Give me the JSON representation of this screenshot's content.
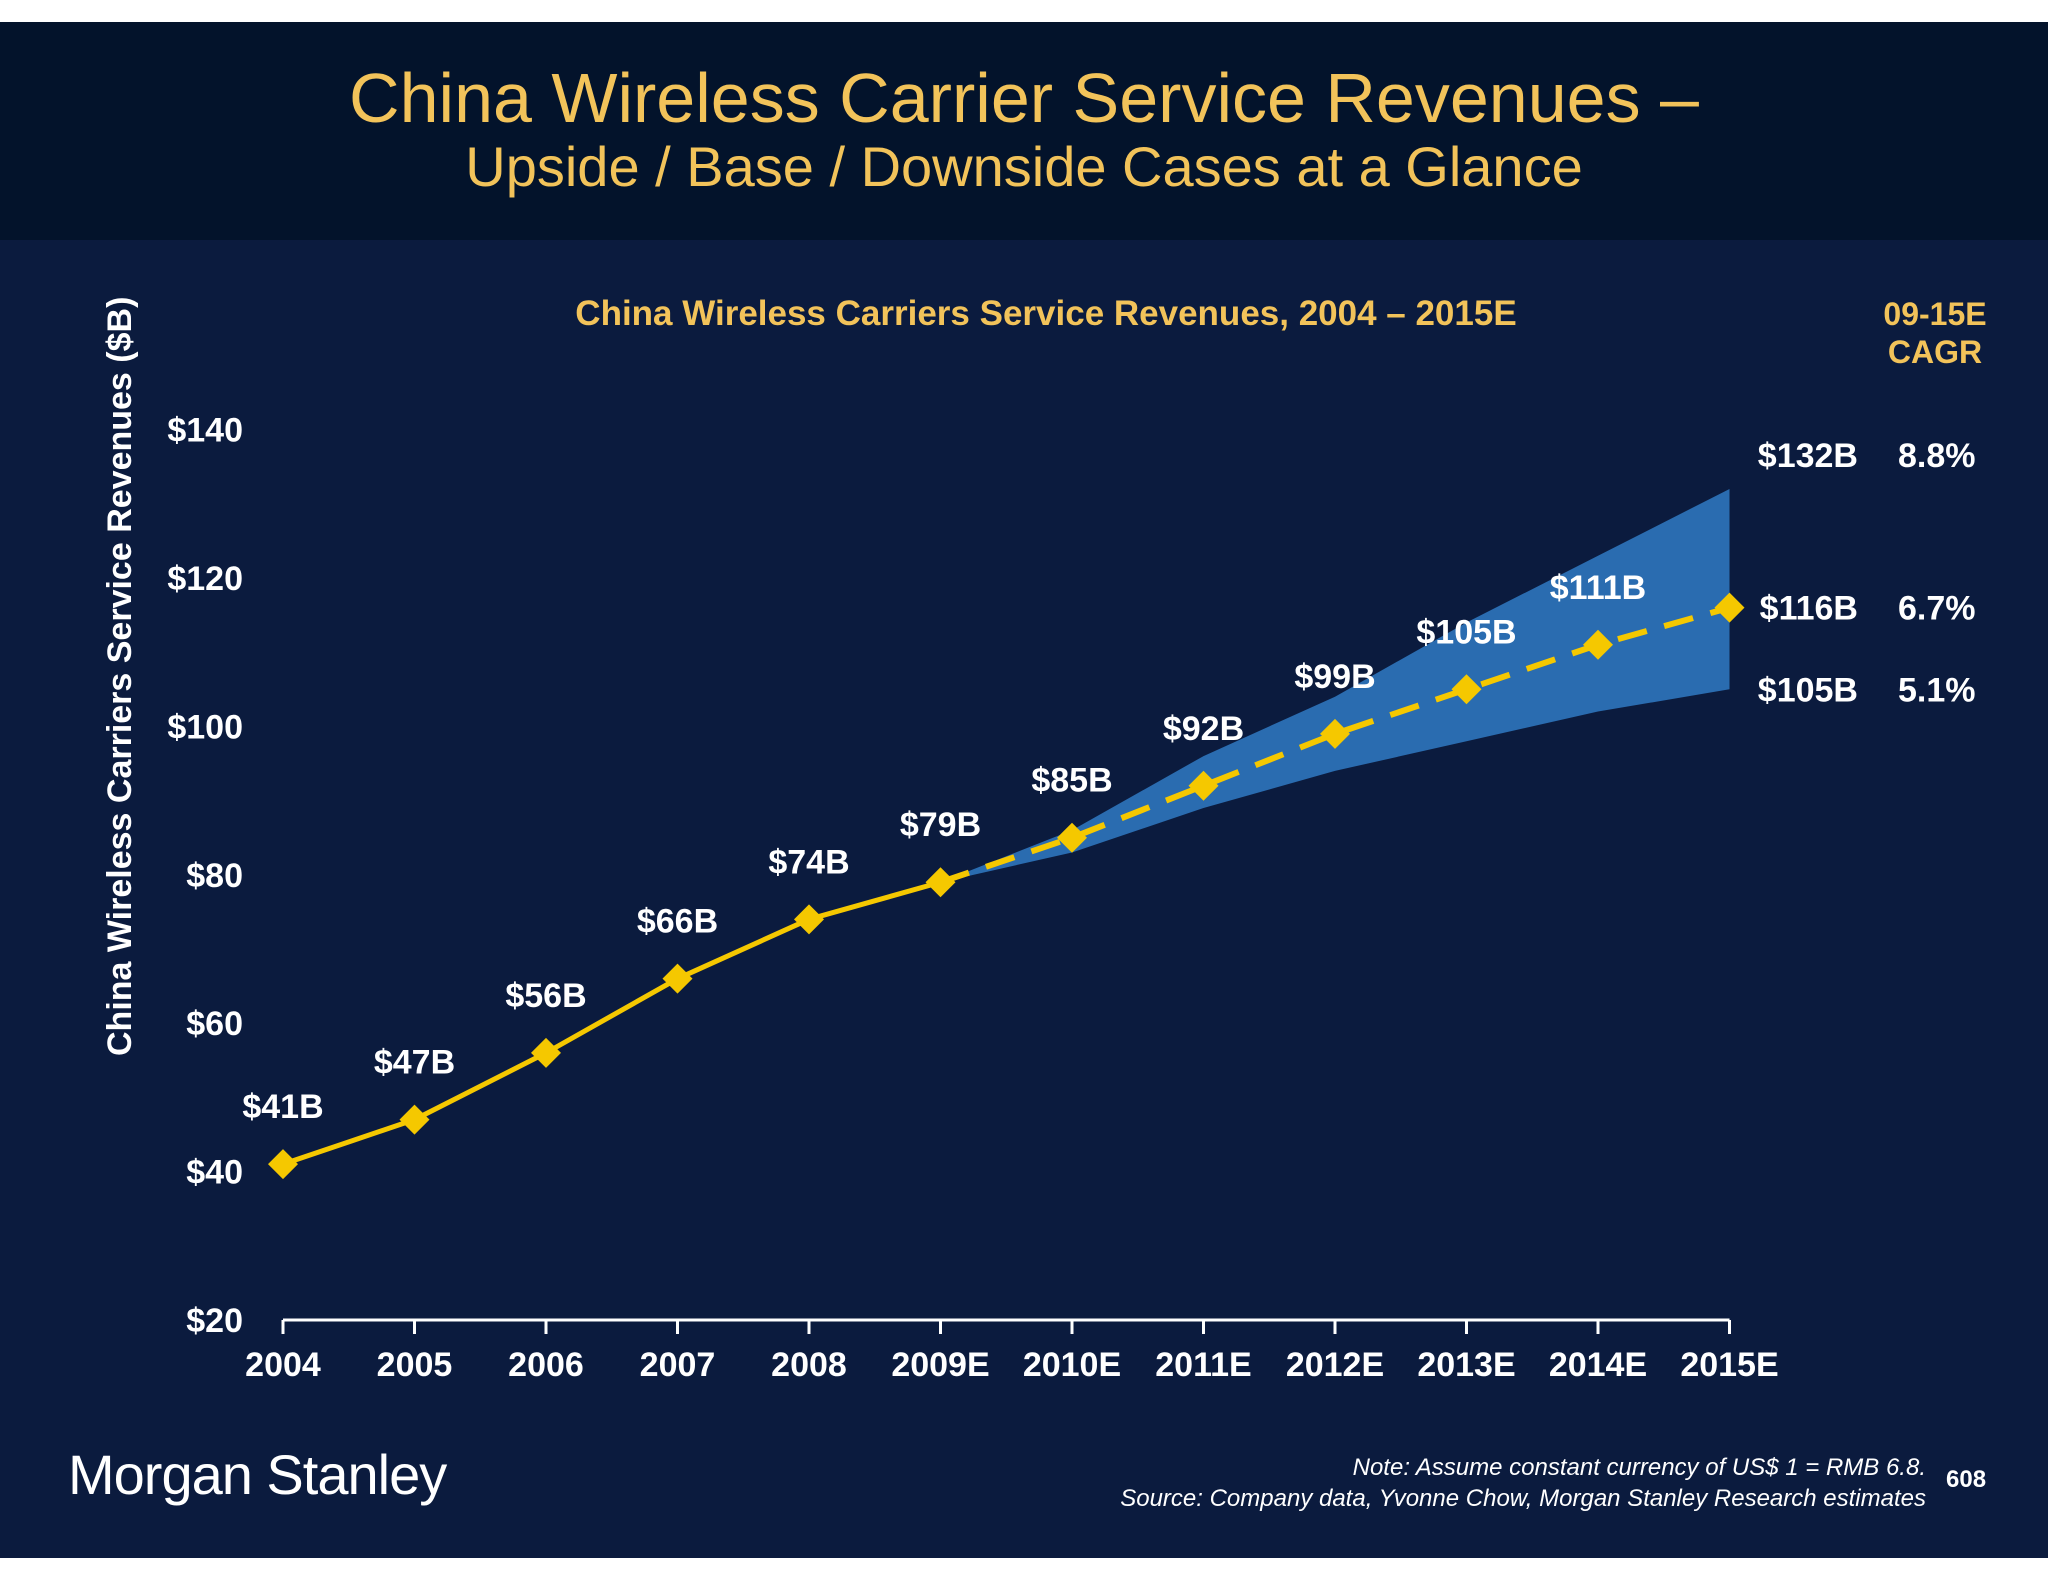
{
  "slide": {
    "title_line1": "China Wireless Carrier Service Revenues –",
    "title_line2": "Upside / Base / Downside Cases at a Glance",
    "logo": "Morgan Stanley",
    "note": "Note: Assume constant currency of US$ 1 = RMB 6.8.",
    "source": "Source: Company data, Yvonne Chow, Morgan Stanley Research estimates",
    "page_number": "608"
  },
  "colors": {
    "background": "#0b1b3e",
    "header": "#03132b",
    "title": "#f2c35a",
    "line": "#f5c800",
    "band": "#2a6cb0"
  },
  "chart_data": {
    "type": "line",
    "title": "China Wireless Carriers Service Revenues, 2004 – 2015E",
    "ylabel": "China Wireless Carriers Service Revenues ($B)",
    "xlabel": "",
    "ylim": [
      20,
      140
    ],
    "yticks": [
      20,
      40,
      60,
      80,
      100,
      120,
      140
    ],
    "ytick_labels": [
      "$20",
      "$40",
      "$60",
      "$80",
      "$100",
      "$120",
      "$140"
    ],
    "categories": [
      "2004",
      "2005",
      "2006",
      "2007",
      "2008",
      "2009E",
      "2010E",
      "2011E",
      "2012E",
      "2013E",
      "2014E",
      "2015E"
    ],
    "series": [
      {
        "values": [
          41,
          47,
          56,
          66,
          74,
          79,
          85,
          92,
          99,
          105,
          111,
          116
        ],
        "labels": [
          "$41B",
          "$47B",
          "$56B",
          "$66B",
          "$74B",
          "$79B",
          "$85B",
          "$92B",
          "$99B",
          "$105B",
          "$111B",
          "$116B"
        ],
        "solid_through": "2009E",
        "dashed_from": "2009E"
      }
    ],
    "range_band": {
      "categories": [
        "2009E",
        "2010E",
        "2011E",
        "2012E",
        "2013E",
        "2014E",
        "2015E"
      ],
      "upper": [
        79,
        86,
        96,
        104,
        114,
        123,
        132
      ],
      "lower": [
        79,
        83,
        89,
        94,
        98,
        102,
        105
      ]
    },
    "cagr_header": [
      "09-15E",
      "CAGR"
    ],
    "cases": [
      {
        "value_label": "$132B",
        "value": 132,
        "cagr": "8.8%"
      },
      {
        "value_label": "$116B",
        "value": 116,
        "cagr": "6.7%"
      },
      {
        "value_label": "$105B",
        "value": 105,
        "cagr": "5.1%"
      }
    ],
    "grid": false,
    "legend": "none"
  }
}
